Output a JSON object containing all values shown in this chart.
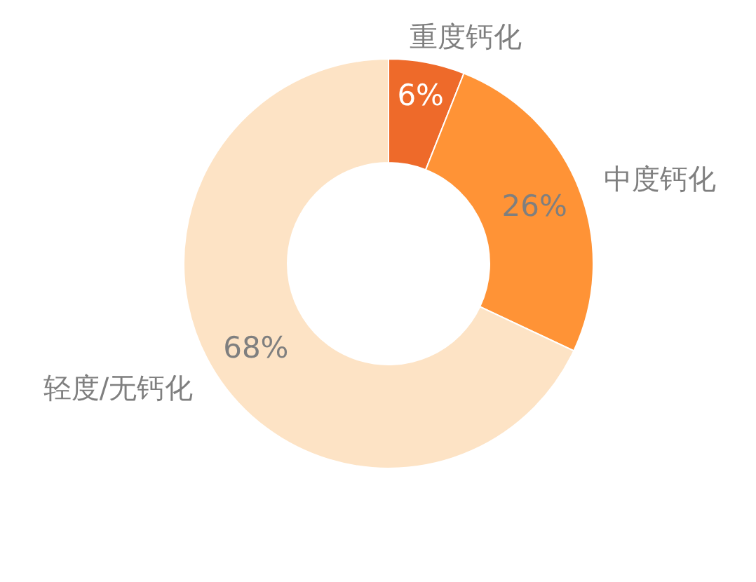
{
  "chart_data": {
    "type": "donut",
    "categories": [
      "重度钙化",
      "中度钙化",
      "轻度/无钙化"
    ],
    "values": [
      6,
      26,
      68
    ],
    "colors": [
      "#ee6a2a",
      "#ff9336",
      "#fde3c5"
    ],
    "value_labels": [
      "6%",
      "26%",
      "68%"
    ]
  }
}
